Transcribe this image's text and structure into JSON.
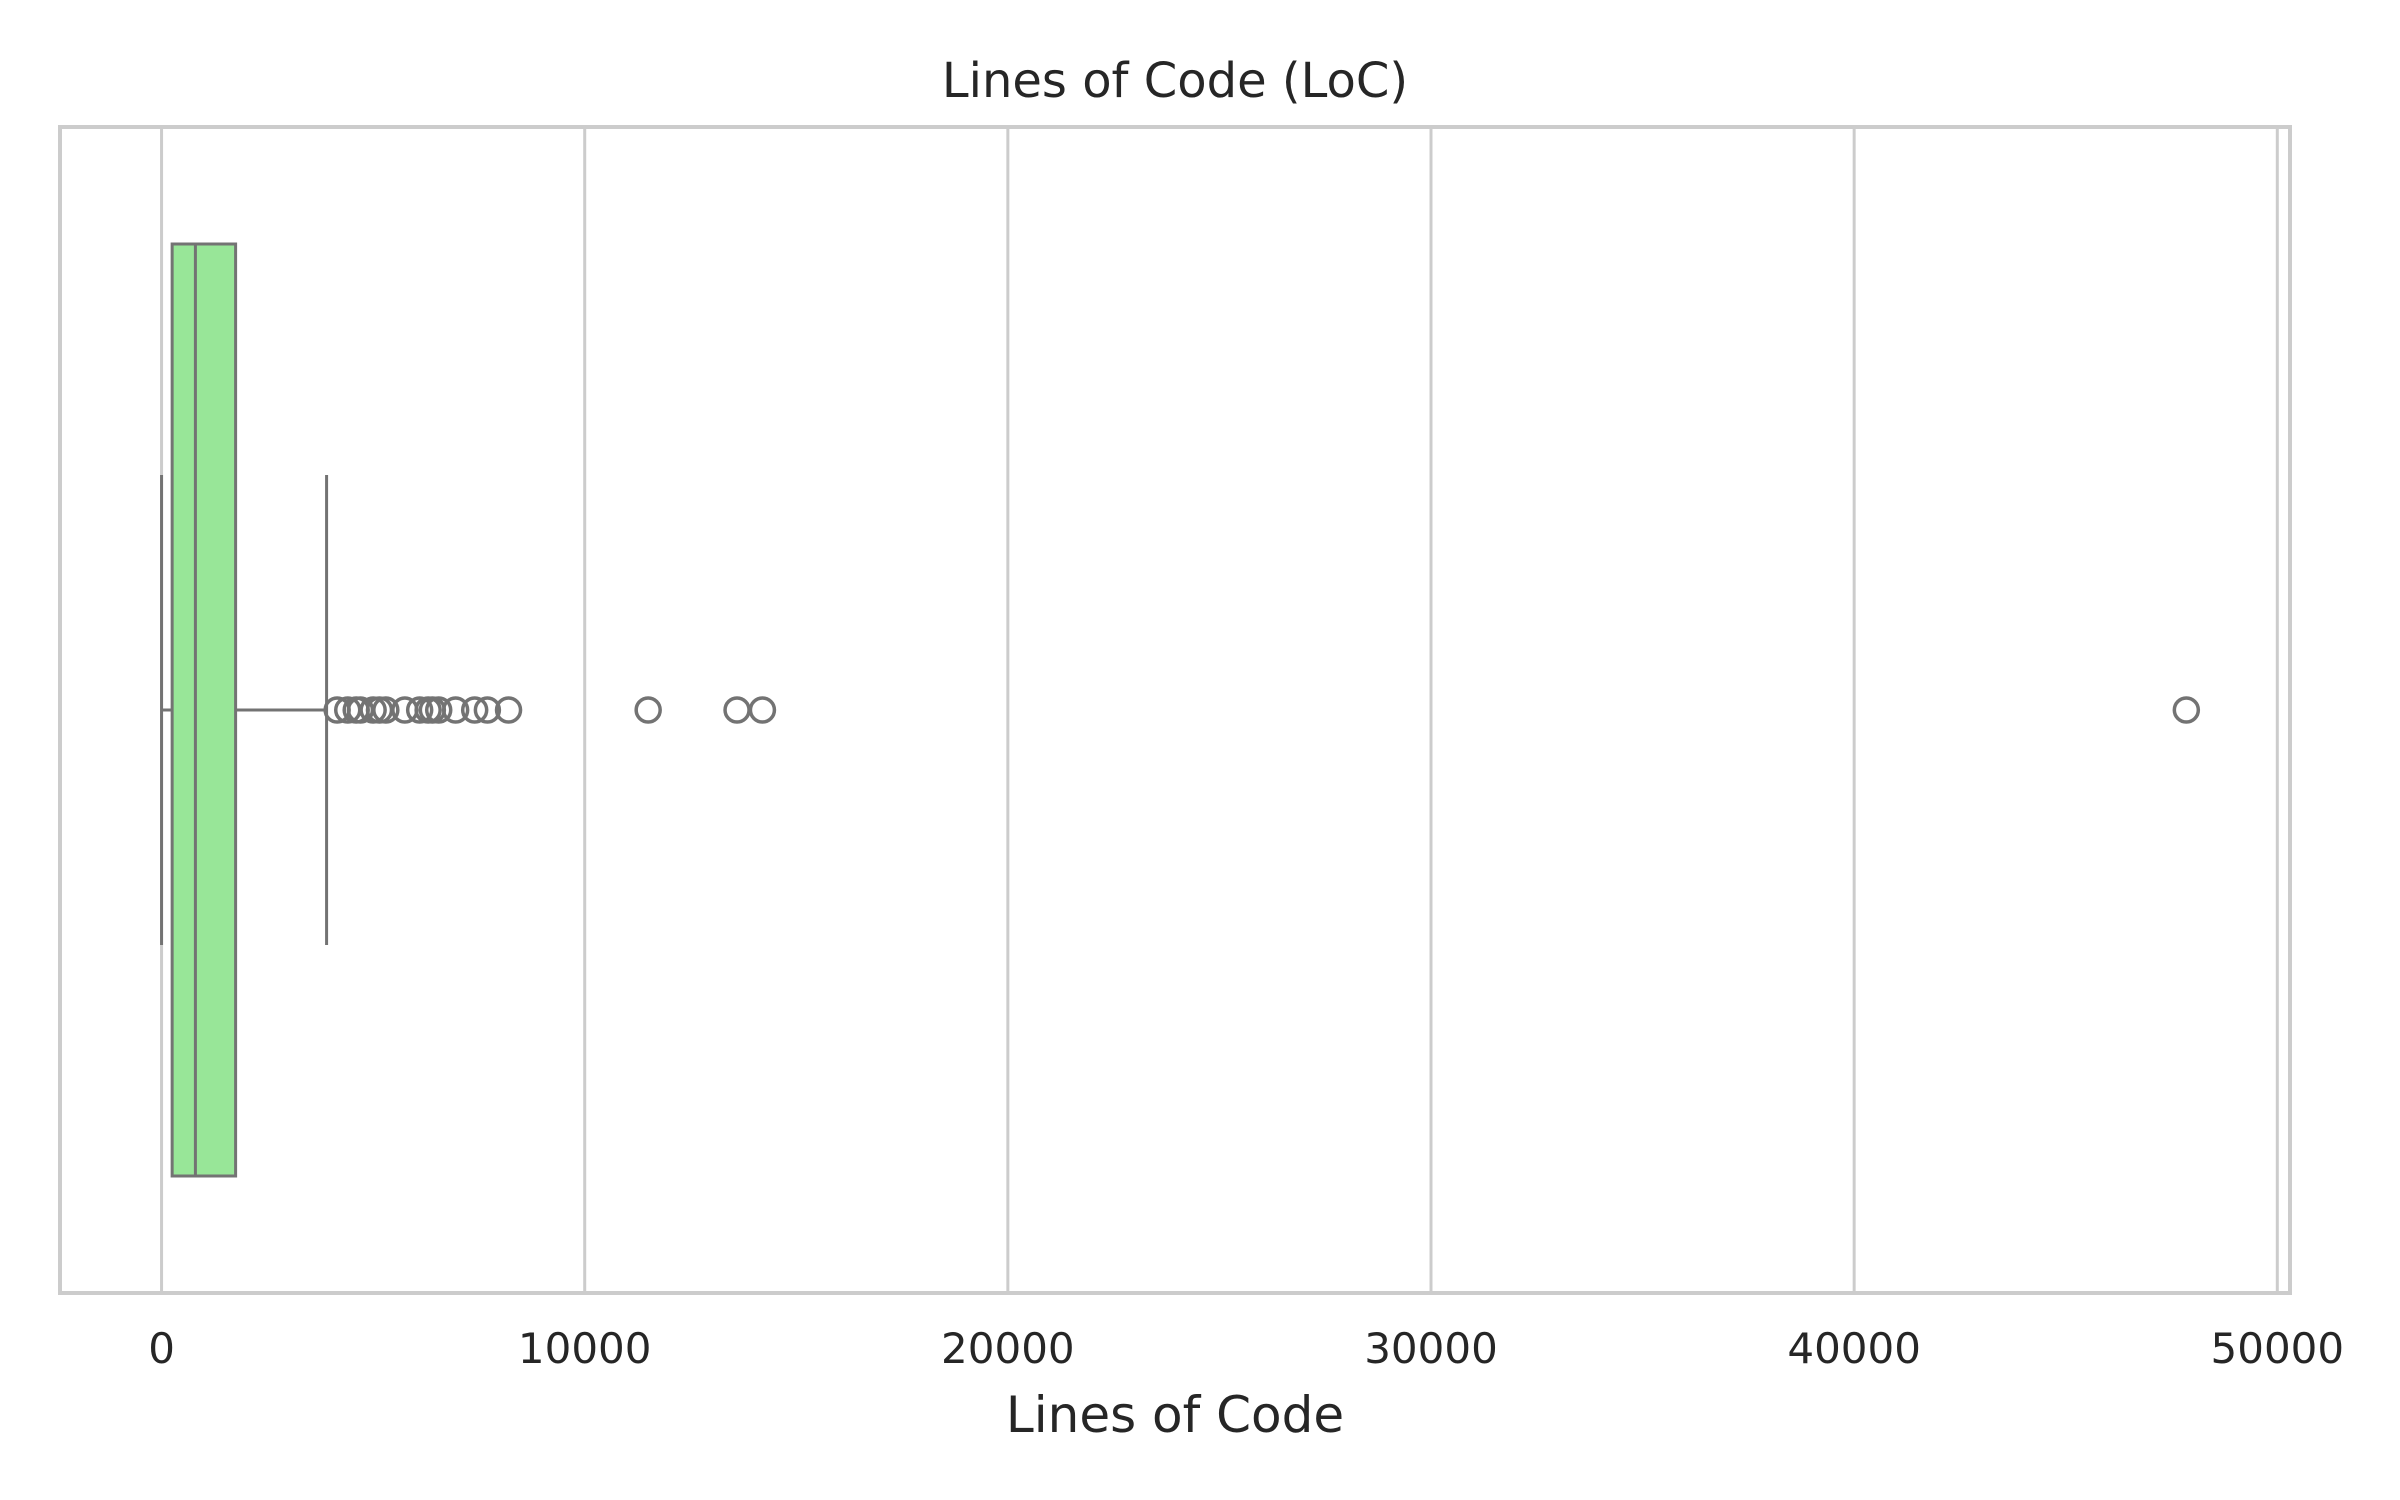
{
  "chart_data": {
    "type": "boxplot",
    "title": "Lines of Code (LoC)",
    "xlabel": "Lines of Code",
    "ylabel": "",
    "orientation": "horizontal",
    "xlim": [
      -2400,
      50300
    ],
    "xticks": [
      0,
      10000,
      20000,
      30000,
      40000,
      50000
    ],
    "xtick_labels": [
      "0",
      "10000",
      "20000",
      "30000",
      "40000",
      "50000"
    ],
    "grid": "vertical",
    "box": {
      "whisker_low": 0,
      "q1": 250,
      "median": 800,
      "q3": 1750,
      "whisker_high": 3900
    },
    "outliers": [
      4150,
      4400,
      4600,
      4700,
      5000,
      5150,
      5300,
      5750,
      6100,
      6300,
      6400,
      6550,
      6950,
      7400,
      7700,
      8200,
      11500,
      13600,
      14200,
      47850
    ],
    "colors": {
      "box_fill": "#98e698",
      "line": "#737373",
      "grid": "#cccccc",
      "frame": "#cccccc",
      "text": "#262626"
    }
  }
}
